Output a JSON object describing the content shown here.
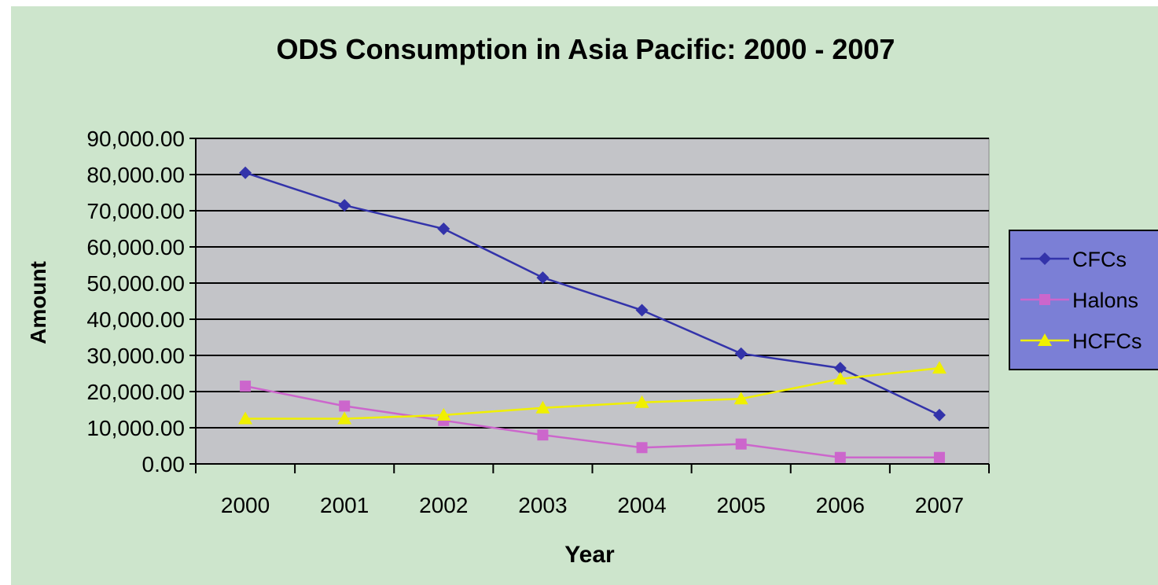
{
  "chart_data": {
    "type": "line",
    "title": "ODS Consumption in Asia Pacific: 2000 - 2007",
    "xlabel": "Year",
    "ylabel": "Amount",
    "categories": [
      "2000",
      "2001",
      "2002",
      "2003",
      "2004",
      "2005",
      "2006",
      "2007"
    ],
    "ylim": [
      0,
      90000
    ],
    "yticks": [
      "0.00",
      "10,000.00",
      "20,000.00",
      "30,000.00",
      "40,000.00",
      "50,000.00",
      "60,000.00",
      "70,000.00",
      "80,000.00",
      "90,000.00"
    ],
    "grid": true,
    "legend_position": "right",
    "series": [
      {
        "name": "CFCs",
        "values": [
          80500,
          71500,
          65000,
          51500,
          42500,
          30500,
          26500,
          13500
        ],
        "color": "#3333aa",
        "marker": "diamond"
      },
      {
        "name": "Halons",
        "values": [
          21500,
          16000,
          12000,
          8000,
          4500,
          5500,
          1800,
          1800
        ],
        "color": "#cc66cc",
        "marker": "square"
      },
      {
        "name": "HCFCs",
        "values": [
          12500,
          12500,
          13500,
          15500,
          17000,
          18000,
          23500,
          26500
        ],
        "color": "#f0f000",
        "marker": "triangle"
      }
    ],
    "colors": {
      "background": "#cde5cc",
      "plot_area": "#c3c4c8",
      "legend_background": "#7b7fd6"
    }
  }
}
